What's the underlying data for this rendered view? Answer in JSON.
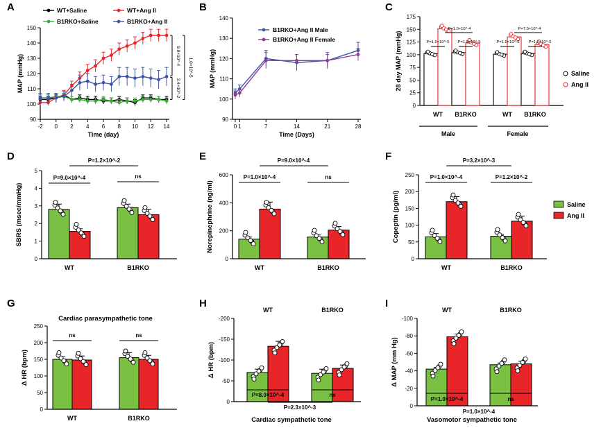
{
  "colors": {
    "wt_saline": "#000000",
    "wt_angii": "#e8262a",
    "b1rko_saline": "#3aaa35",
    "b1rko_angii": "#3d55a8",
    "male": "#3d55a8",
    "female": "#8e3a96",
    "green_bar": "#7ac143",
    "red_bar": "#e8262a"
  },
  "chart_data": [
    {
      "id": "A",
      "type": "line",
      "label": "A",
      "xlabel": "Time (day)",
      "ylabel": "MAP (mmHg)",
      "xlim": [
        -2,
        14
      ],
      "ylim": [
        90,
        150
      ],
      "x_ticks": [
        -2,
        0,
        2,
        4,
        6,
        8,
        10,
        12,
        14
      ],
      "y_ticks": [
        90,
        100,
        110,
        120,
        130,
        140,
        150
      ],
      "x": [
        -2,
        -1,
        0,
        1,
        2,
        3,
        4,
        5,
        6,
        7,
        8,
        9,
        10,
        11,
        12,
        13,
        14
      ],
      "series": [
        {
          "name": "WT+Saline",
          "color": "#000000",
          "values": [
            103,
            103,
            104,
            106,
            103,
            104,
            103,
            103,
            102,
            102,
            103,
            102,
            101,
            104,
            104,
            103,
            103
          ],
          "err": [
            2,
            2,
            2,
            2,
            2,
            2,
            2,
            2,
            2,
            2,
            2,
            2,
            2,
            2,
            2,
            2,
            2
          ]
        },
        {
          "name": "WT+Ang II",
          "color": "#e8262a",
          "values": [
            101,
            101,
            104,
            106,
            112,
            117,
            122,
            125,
            130,
            132,
            136,
            138,
            140,
            143,
            145,
            145,
            145
          ],
          "err": [
            2,
            2,
            3,
            3,
            3,
            4,
            4,
            4,
            4,
            4,
            4,
            4,
            4,
            4,
            4,
            4,
            4
          ]
        },
        {
          "name": "B1RKO+Saline",
          "color": "#3aaa35",
          "values": [
            104,
            104,
            105,
            105,
            103,
            103,
            102,
            102,
            103,
            102,
            101,
            102,
            102,
            103,
            103,
            103,
            102
          ],
          "err": [
            2,
            2,
            2,
            2,
            2,
            2,
            2,
            2,
            2,
            2,
            2,
            2,
            2,
            2,
            2,
            2,
            2
          ]
        },
        {
          "name": "B1RKO+Ang II",
          "color": "#3d55a8",
          "values": [
            104,
            104,
            104,
            105,
            109,
            114,
            115,
            113,
            114,
            113,
            118,
            118,
            117,
            118,
            117,
            116,
            118
          ],
          "err": [
            3,
            3,
            3,
            3,
            4,
            5,
            5,
            5,
            5,
            5,
            6,
            6,
            6,
            6,
            6,
            6,
            6
          ]
        }
      ],
      "legend": [
        "WT+Saline",
        "WT+Ang II",
        "B1RKO+Saline",
        "B1RKO+Ang II"
      ],
      "annotations": [
        "9.0×10^-4",
        "1.0×10^-5",
        "3.4×10^-2"
      ]
    },
    {
      "id": "B",
      "type": "line",
      "label": "B",
      "xlabel": "Time (Days)",
      "ylabel": "MAP (mmHg)",
      "xlim": [
        0,
        28
      ],
      "ylim": [
        90,
        140
      ],
      "x_ticks": [
        0,
        1,
        7,
        14,
        21,
        28
      ],
      "y_ticks": [
        90,
        100,
        110,
        120,
        130,
        140
      ],
      "x": [
        0,
        1,
        7,
        14,
        21,
        28
      ],
      "series": [
        {
          "name": "B1RKO+Ang II Male",
          "color": "#3d55a8",
          "values": [
            103,
            105,
            120,
            118,
            119,
            124
          ],
          "err": [
            2,
            2,
            4,
            4,
            4,
            4
          ]
        },
        {
          "name": "B1RKO+Ang II Female",
          "color": "#8e3a96",
          "values": [
            102,
            103,
            119,
            119,
            119,
            122
          ],
          "err": [
            2,
            2,
            4,
            3,
            3,
            3
          ]
        }
      ],
      "legend": [
        "B1RKO+Ang II Male",
        "B1RKO+Ang II Female"
      ]
    },
    {
      "id": "C",
      "type": "bar",
      "label": "C",
      "ylabel": "28 day MAP (mmHg)",
      "ylim": [
        0,
        175
      ],
      "y_ticks": [
        0,
        25,
        50,
        75,
        100,
        125,
        150,
        175
      ],
      "group_labels": [
        "WT",
        "B1RKO",
        "WT",
        "B1RKO"
      ],
      "sex_labels": [
        "Male",
        "Female"
      ],
      "bars": [
        {
          "name": "Male WT Saline",
          "value": 102,
          "style": "saline"
        },
        {
          "name": "Male WT Ang II",
          "value": 151,
          "style": "angii"
        },
        {
          "name": "Male B1RKO Saline",
          "value": 104,
          "style": "saline"
        },
        {
          "name": "Male B1RKO Ang II",
          "value": 123,
          "style": "angii"
        },
        {
          "name": "Female WT Saline",
          "value": 101,
          "style": "saline"
        },
        {
          "name": "Female WT Ang II",
          "value": 135,
          "style": "angii"
        },
        {
          "name": "Female B1RKO Saline",
          "value": 102,
          "style": "saline"
        },
        {
          "name": "Female B1RKO Ang II",
          "value": 120,
          "style": "angii"
        }
      ],
      "legend": [
        "Saline",
        "Ang II"
      ],
      "annotations": [
        "P=1.0×10^-4",
        "P=1.0×10^-5",
        "P=1.0×10^-5",
        "P=7.0×10^-4",
        "P=1.0×10^-5",
        "P=1.0×10^-5"
      ]
    },
    {
      "id": "D",
      "type": "bar",
      "label": "D",
      "ylabel": "SBRS (msec/mmHg)",
      "ylim": [
        0,
        5
      ],
      "y_ticks": [
        0,
        1,
        2,
        3,
        4,
        5
      ],
      "categories": [
        "WT",
        "B1RKO"
      ],
      "series": [
        {
          "name": "Saline",
          "values": [
            2.8,
            2.9
          ],
          "err": [
            0.3,
            0.2
          ]
        },
        {
          "name": "Ang II",
          "values": [
            1.55,
            2.5
          ],
          "err": [
            0.15,
            0.3
          ]
        }
      ],
      "annotations": [
        "P=9.0×10^-4",
        "P=1.2×10^-2",
        "ns"
      ]
    },
    {
      "id": "E",
      "type": "bar",
      "label": "E",
      "ylabel": "Norepinephrine (ng/ml)",
      "ylim": [
        0,
        600
      ],
      "y_ticks": [
        0,
        200,
        400,
        600
      ],
      "categories": [
        "WT",
        "B1RKO"
      ],
      "series": [
        {
          "name": "Saline",
          "values": [
            140,
            155
          ],
          "err": [
            15,
            15
          ]
        },
        {
          "name": "Ang II",
          "values": [
            355,
            205
          ],
          "err": [
            50,
            25
          ]
        }
      ],
      "annotations": [
        "P=1.0×10^-4",
        "P=9.0×10^-4",
        "ns"
      ]
    },
    {
      "id": "F",
      "type": "bar",
      "label": "F",
      "ylabel": "Copeptin (pg/ml)",
      "ylim": [
        0,
        250
      ],
      "y_ticks": [
        0,
        50,
        100,
        150,
        200,
        250
      ],
      "categories": [
        "WT",
        "B1RKO"
      ],
      "series": [
        {
          "name": "Saline",
          "values": [
            65,
            67
          ],
          "err": [
            10,
            6
          ]
        },
        {
          "name": "Ang II",
          "values": [
            170,
            112
          ],
          "err": [
            15,
            15
          ]
        }
      ],
      "legend": [
        "Saline",
        "Ang II"
      ],
      "annotations": [
        "P=1.0×10^-4",
        "P=3.2×10^-3",
        "P=1.2×10^-2"
      ]
    },
    {
      "id": "G",
      "type": "bar",
      "label": "G",
      "title": "Cardiac parasympathetic tone",
      "ylabel": "Δ HR (bpm)",
      "ylim": [
        0,
        250
      ],
      "y_ticks": [
        0,
        50,
        100,
        150,
        200,
        250
      ],
      "categories": [
        "WT",
        "B1RKO"
      ],
      "series": [
        {
          "name": "Saline",
          "values": [
            150,
            155
          ],
          "err": [
            8,
            15
          ]
        },
        {
          "name": "Ang II",
          "values": [
            148,
            150
          ],
          "err": [
            12,
            12
          ]
        }
      ],
      "annotations": [
        "ns",
        "ns"
      ]
    },
    {
      "id": "H",
      "type": "bar",
      "label": "H",
      "title": "Cardiac sympathetic tone",
      "ylabel": "Δ HR (bpm)",
      "ylim": [
        -200,
        0
      ],
      "y_ticks": [
        0,
        -50,
        -100,
        -150,
        -200
      ],
      "categories": [
        "WT",
        "B1RKO"
      ],
      "series": [
        {
          "name": "Saline",
          "values": [
            -70,
            -68
          ],
          "err": [
            8,
            10
          ]
        },
        {
          "name": "Ang II",
          "values": [
            -133,
            -80
          ],
          "err": [
            12,
            8
          ]
        }
      ],
      "annotations": [
        "P=8.0×10^-4",
        "P=2.3×10^-3",
        "ns"
      ]
    },
    {
      "id": "I",
      "type": "bar",
      "label": "I",
      "title": "Vasomotor sympathetic tone",
      "ylabel": "Δ MAP (mm Hg)",
      "ylim": [
        -100,
        0
      ],
      "y_ticks": [
        0,
        -20,
        -40,
        -60,
        -80,
        -100
      ],
      "categories": [
        "WT",
        "B1RKO"
      ],
      "series": [
        {
          "name": "Saline",
          "values": [
            -42,
            -47
          ],
          "err": [
            2,
            2
          ]
        },
        {
          "name": "Ang II",
          "values": [
            -79,
            -48
          ],
          "err": [
            3,
            3
          ]
        }
      ],
      "annotations": [
        "P=1.0×10^-4",
        "P=1.0×10^-4",
        "ns"
      ]
    }
  ]
}
